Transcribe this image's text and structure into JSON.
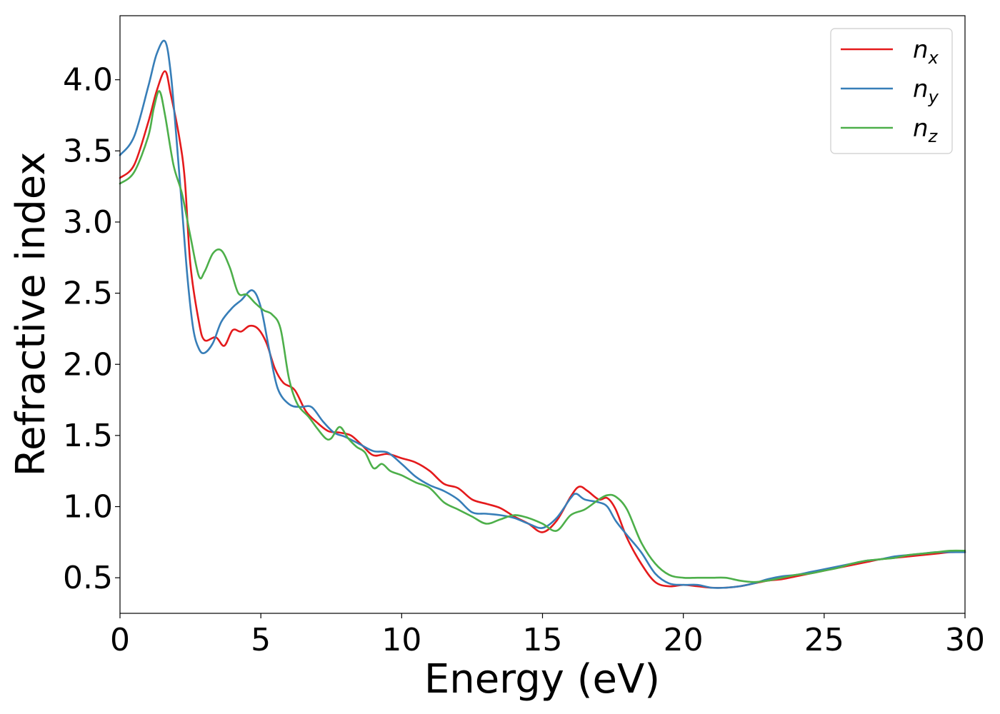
{
  "chart_data": {
    "type": "line",
    "title": "",
    "xlabel": "Energy (eV)",
    "ylabel": "Refractive index",
    "xlim": [
      0,
      30
    ],
    "ylim": [
      0.25,
      4.45
    ],
    "xticks": [
      0,
      5,
      10,
      15,
      20,
      25,
      30
    ],
    "yticks": [
      0.5,
      1.0,
      1.5,
      2.0,
      2.5,
      3.0,
      3.5,
      4.0
    ],
    "grid": false,
    "legend_position": "top-right",
    "series": [
      {
        "name": "n",
        "subscript": "x",
        "color": "#e41a1c",
        "x": [
          0,
          0.5,
          1.0,
          1.3,
          1.6,
          1.8,
          2.1,
          2.3,
          2.5,
          2.8,
          3.0,
          3.4,
          3.7,
          4.0,
          4.3,
          4.6,
          4.9,
          5.2,
          5.5,
          5.8,
          6.2,
          6.6,
          7.0,
          7.4,
          7.8,
          8.2,
          8.6,
          9.0,
          9.5,
          10.0,
          10.5,
          11.0,
          11.5,
          12.0,
          12.5,
          13.0,
          13.5,
          14.0,
          14.5,
          15.0,
          15.5,
          16.0,
          16.3,
          16.6,
          17.0,
          17.3,
          17.6,
          18.0,
          18.5,
          19.0,
          19.5,
          20.0,
          20.5,
          21.0,
          21.5,
          22.0,
          22.5,
          23.0,
          23.5,
          24.0,
          24.5,
          25.0,
          25.5,
          26.0,
          26.5,
          27.0,
          27.5,
          28.0,
          28.5,
          29.0,
          29.5,
          30.0
        ],
        "y": [
          3.31,
          3.4,
          3.7,
          3.92,
          4.06,
          3.9,
          3.6,
          3.3,
          2.7,
          2.3,
          2.17,
          2.19,
          2.13,
          2.24,
          2.23,
          2.27,
          2.25,
          2.15,
          1.97,
          1.87,
          1.82,
          1.67,
          1.59,
          1.53,
          1.52,
          1.5,
          1.43,
          1.36,
          1.37,
          1.34,
          1.31,
          1.25,
          1.16,
          1.13,
          1.05,
          1.02,
          0.99,
          0.93,
          0.88,
          0.82,
          0.9,
          1.07,
          1.14,
          1.11,
          1.05,
          1.06,
          0.98,
          0.78,
          0.6,
          0.47,
          0.44,
          0.45,
          0.44,
          0.43,
          0.43,
          0.44,
          0.46,
          0.48,
          0.49,
          0.51,
          0.53,
          0.55,
          0.57,
          0.59,
          0.61,
          0.63,
          0.64,
          0.65,
          0.66,
          0.67,
          0.68,
          0.68
        ]
      },
      {
        "name": "n",
        "subscript": "y",
        "color": "#377eb8",
        "x": [
          0,
          0.5,
          1.0,
          1.3,
          1.6,
          1.8,
          2.0,
          2.2,
          2.4,
          2.6,
          2.8,
          3.0,
          3.3,
          3.6,
          4.0,
          4.3,
          4.7,
          5.0,
          5.3,
          5.6,
          6.0,
          6.4,
          6.8,
          7.2,
          7.6,
          8.0,
          8.5,
          9.0,
          9.5,
          10.0,
          10.5,
          11.0,
          11.5,
          12.0,
          12.5,
          13.0,
          13.5,
          14.0,
          14.5,
          15.0,
          15.5,
          16.0,
          16.2,
          16.5,
          17.0,
          17.3,
          17.6,
          18.0,
          18.5,
          19.0,
          19.5,
          20.0,
          20.5,
          21.0,
          21.5,
          22.0,
          22.5,
          23.0,
          23.5,
          24.0,
          24.5,
          25.0,
          25.5,
          26.0,
          26.5,
          27.0,
          27.5,
          28.0,
          28.5,
          29.0,
          29.5,
          30.0
        ],
        "y": [
          3.47,
          3.6,
          3.95,
          4.18,
          4.27,
          4.05,
          3.6,
          3.1,
          2.6,
          2.25,
          2.11,
          2.08,
          2.15,
          2.3,
          2.4,
          2.45,
          2.52,
          2.4,
          2.1,
          1.83,
          1.72,
          1.7,
          1.7,
          1.6,
          1.52,
          1.49,
          1.44,
          1.39,
          1.38,
          1.3,
          1.21,
          1.15,
          1.11,
          1.05,
          0.96,
          0.95,
          0.94,
          0.92,
          0.88,
          0.85,
          0.92,
          1.06,
          1.09,
          1.05,
          1.03,
          1.0,
          0.9,
          0.8,
          0.68,
          0.53,
          0.46,
          0.45,
          0.45,
          0.43,
          0.43,
          0.44,
          0.46,
          0.49,
          0.51,
          0.52,
          0.54,
          0.56,
          0.58,
          0.6,
          0.62,
          0.63,
          0.65,
          0.66,
          0.67,
          0.68,
          0.68,
          0.68
        ]
      },
      {
        "name": "n",
        "subscript": "z",
        "color": "#4daf4a",
        "x": [
          0,
          0.5,
          1.0,
          1.2,
          1.4,
          1.6,
          1.9,
          2.2,
          2.5,
          2.8,
          3.0,
          3.3,
          3.6,
          3.9,
          4.2,
          4.5,
          4.8,
          5.1,
          5.4,
          5.7,
          6.0,
          6.3,
          6.7,
          7.0,
          7.3,
          7.5,
          7.8,
          8.1,
          8.4,
          8.7,
          9.0,
          9.3,
          9.6,
          10.0,
          10.5,
          11.0,
          11.5,
          12.0,
          12.5,
          13.0,
          13.5,
          14.0,
          14.5,
          15.0,
          15.5,
          16.0,
          16.5,
          17.0,
          17.3,
          17.6,
          18.0,
          18.5,
          19.0,
          19.5,
          20.0,
          20.5,
          21.0,
          21.5,
          22.0,
          22.5,
          23.0,
          23.5,
          24.0,
          24.5,
          25.0,
          25.5,
          26.0,
          26.5,
          27.0,
          27.5,
          28.0,
          28.5,
          29.0,
          29.5,
          30.0
        ],
        "y": [
          3.27,
          3.35,
          3.6,
          3.8,
          3.92,
          3.75,
          3.4,
          3.2,
          2.9,
          2.62,
          2.65,
          2.78,
          2.8,
          2.68,
          2.5,
          2.49,
          2.43,
          2.38,
          2.35,
          2.25,
          1.9,
          1.72,
          1.63,
          1.55,
          1.48,
          1.48,
          1.56,
          1.48,
          1.42,
          1.38,
          1.27,
          1.3,
          1.25,
          1.22,
          1.17,
          1.13,
          1.03,
          0.98,
          0.93,
          0.88,
          0.91,
          0.94,
          0.92,
          0.88,
          0.83,
          0.94,
          0.98,
          1.05,
          1.08,
          1.07,
          0.98,
          0.75,
          0.6,
          0.52,
          0.5,
          0.5,
          0.5,
          0.5,
          0.48,
          0.47,
          0.48,
          0.5,
          0.52,
          0.53,
          0.55,
          0.57,
          0.6,
          0.62,
          0.63,
          0.64,
          0.66,
          0.67,
          0.68,
          0.69,
          0.69
        ]
      }
    ]
  }
}
